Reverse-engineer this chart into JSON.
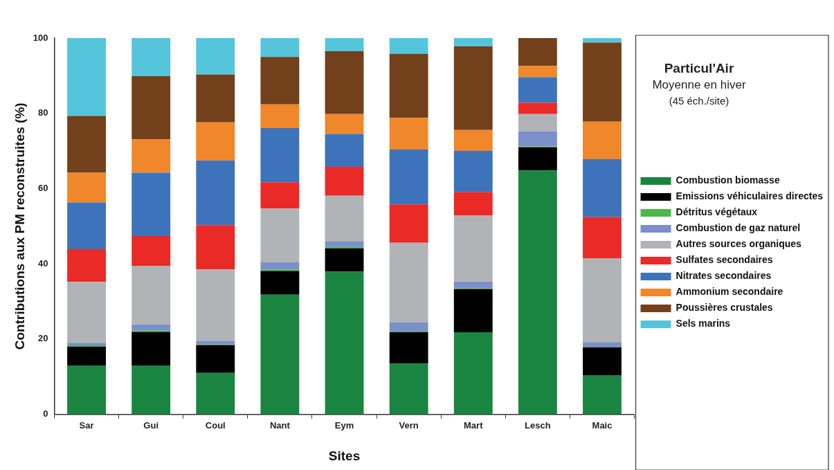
{
  "chart_data": {
    "type": "bar",
    "title": "Particul'Air",
    "subtitle": "Moyenne en hiver",
    "annotations": [
      "(45 éch./site)"
    ],
    "xlabel": "Sites",
    "ylabel": "Contributions aux PM reconstruites (%)",
    "categories": [
      "Sar",
      "Gui",
      "Coul",
      "Nant",
      "Eym",
      "Vern",
      "Mart",
      "Lesch",
      "Maic"
    ],
    "stacked": true,
    "ylim": [
      0,
      100
    ],
    "yticks": [
      0,
      20,
      40,
      60,
      80,
      100
    ],
    "grid": false,
    "legend": "right",
    "series": [
      {
        "name": "Combustion biomasse",
        "color": "#1a8540",
        "values": [
          13,
          13,
          11,
          31.8,
          37.9,
          13.5,
          21.8,
          64.8,
          10.4
        ]
      },
      {
        "name": "Emissions véhiculaires directes",
        "color": "#000000",
        "values": [
          5,
          8.9,
          7.4,
          6.3,
          6.2,
          8.3,
          11.5,
          6.2,
          7.4
        ]
      },
      {
        "name": "Détritus végétaux",
        "color": "#4cb848",
        "values": [
          0.3,
          0.4,
          0.2,
          0.4,
          0.4,
          0.2,
          0.2,
          0.2,
          0.1
        ]
      },
      {
        "name": "Combustion de gaz naturel",
        "color": "#7b8fcb",
        "values": [
          0.7,
          1.6,
          0.9,
          1.9,
          1.4,
          2.4,
          1.8,
          4.0,
          1.3
        ]
      },
      {
        "name": "Autres sources organiques",
        "color": "#b1b4b7",
        "values": [
          16.2,
          15.6,
          19,
          14.3,
          12.2,
          21.2,
          17.5,
          4.6,
          22.2
        ]
      },
      {
        "name": "Sulfates secondaires",
        "color": "#e92a26",
        "values": [
          8.7,
          7.9,
          11.8,
          7.0,
          7.7,
          10.2,
          6.3,
          3.0,
          11
        ]
      },
      {
        "name": "Nitrates secondaires",
        "color": "#3d73ba",
        "values": [
          12.4,
          16.8,
          17.2,
          14.4,
          8.7,
          14.6,
          10.9,
          6.8,
          15.4
        ]
      },
      {
        "name": "Ammonium secondaire",
        "color": "#f0872a",
        "values": [
          7.9,
          8.9,
          10.1,
          6.3,
          5.3,
          8.4,
          5.6,
          3.0,
          10
        ]
      },
      {
        "name": "Poussières crustales",
        "color": "#72401a",
        "values": [
          15.1,
          16.8,
          12.7,
          12.6,
          16.7,
          17,
          22.2,
          7.4,
          21
        ]
      },
      {
        "name": "Sels marins",
        "color": "#55c5dc",
        "values": [
          20.7,
          10.1,
          9.7,
          5.0,
          3.5,
          4.2,
          2.2,
          0,
          1.2
        ]
      }
    ]
  }
}
